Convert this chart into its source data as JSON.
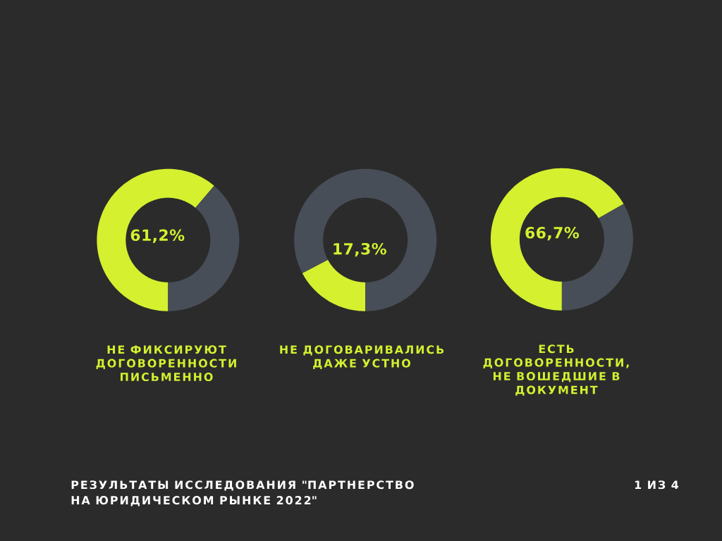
{
  "chart_data": [
    {
      "type": "donut",
      "categories": [
        "НЕ ФИКСИРУЮТ ДОГОВОРЕННОСТИ ПИСЬМЕННО",
        null
      ],
      "values": [
        61.2,
        38.8
      ],
      "colors": [
        "#d4f02f",
        "#474e57"
      ],
      "value_labels": [
        "61,2%",
        null
      ],
      "annotations": [
        "РЕЗУЛЬТАТЫ ИССЛЕДОВАНИЯ \"ПАРТНЕРСТВО НА ЮРИДИЧЕСКОМ РЫНКЕ 2022\"",
        "1 ИЗ 4"
      ]
    },
    {
      "type": "donut",
      "categories": [
        "НЕ ДОГОВАРИВАЛИСЬ ДАЖЕ УСТНО",
        null
      ],
      "values": [
        17.3,
        82.7
      ],
      "colors": [
        "#d4f02f",
        "#474e57"
      ],
      "value_labels": [
        "17,3%",
        null
      ]
    },
    {
      "type": "donut",
      "categories": [
        "ЕСТЬ ДОГОВОРЕННОСТИ, НЕ ВОШЕДШИЕ В ДОКУМЕНТ",
        null
      ],
      "values": [
        66.7,
        33.3
      ],
      "colors": [
        "#d4f02f",
        "#474e57"
      ],
      "value_labels": [
        "66,7%",
        null
      ]
    }
  ]
}
